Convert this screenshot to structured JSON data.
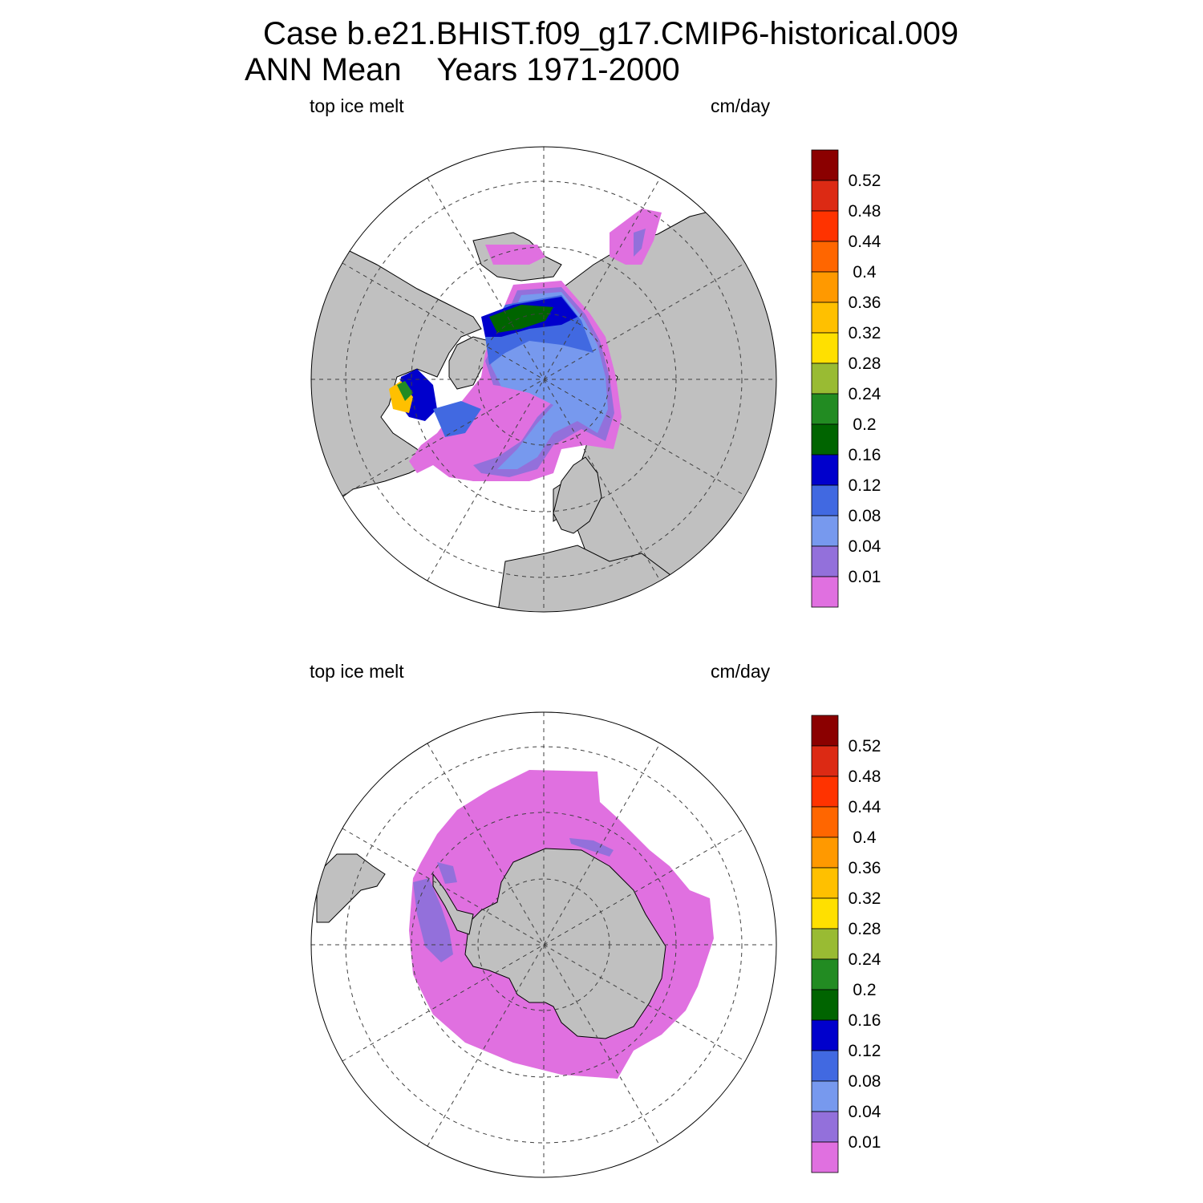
{
  "title": {
    "line1": "Case b.e21.BHIST.f09_g17.CMIP6-historical.009",
    "line2": "ANN Mean    Years 1971-2000"
  },
  "panels": [
    {
      "label_left": "top ice melt",
      "label_right": "cm/day",
      "hemisphere": "north"
    },
    {
      "label_left": "top ice melt",
      "label_right": "cm/day",
      "hemisphere": "south"
    }
  ],
  "colorbar": {
    "labels": [
      "0.52",
      "0.48",
      "0.44",
      "0.4",
      "0.36",
      "0.32",
      "0.28",
      "0.24",
      "0.2",
      "0.16",
      "0.12",
      "0.08",
      "0.04",
      "0.01"
    ],
    "colors": [
      "#8b0000",
      "#dc2a14",
      "#ff3300",
      "#ff6600",
      "#ff9900",
      "#ffc000",
      "#ffe000",
      "#99bb33",
      "#228b22",
      "#006400",
      "#0000cc",
      "#4169e1",
      "#7799ee",
      "#9370db",
      "#e070e0"
    ]
  },
  "colors": {
    "land": "#c0c0c0",
    "ocean": "#ffffff"
  }
}
